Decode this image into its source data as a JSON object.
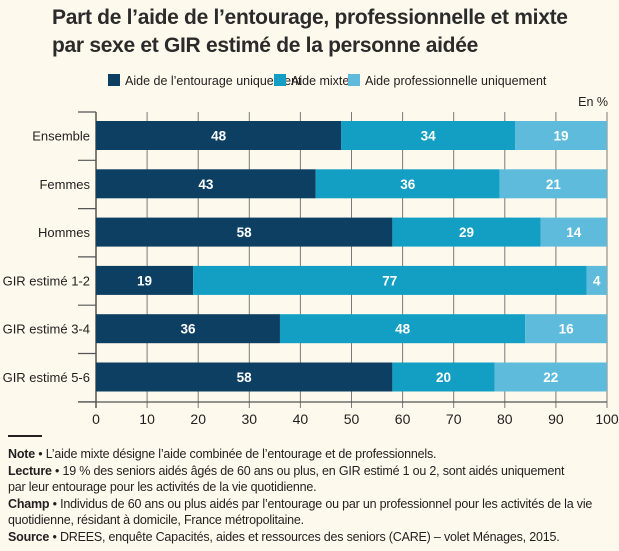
{
  "chart_data": {
    "type": "bar",
    "orientation": "horizontal",
    "stacked": true,
    "title": "Part de l’aide de l’entourage, professionnelle et mixte par sexe et GIR estimé de la personne aidée",
    "title_lines": [
      "Part de l’aide de l’entourage, professionnelle et mixte",
      "par sexe et GIR estimé de la personne aidée"
    ],
    "unit_label": "En %",
    "categories": [
      "Ensemble",
      "Femmes",
      "Hommes",
      "GIR estimé 1-2",
      "GIR estimé 3-4",
      "GIR estimé 5-6"
    ],
    "series": [
      {
        "name": "Aide de l’entourage uniquement",
        "color": "#0d3f63",
        "values": [
          48,
          43,
          58,
          19,
          36,
          58
        ]
      },
      {
        "name": "Aide mixte",
        "color": "#139fc4",
        "values": [
          34,
          36,
          29,
          77,
          48,
          20
        ]
      },
      {
        "name": "Aide professionnelle uniquement",
        "color": "#5ebbdb",
        "values": [
          19,
          21,
          14,
          4,
          16,
          22
        ]
      }
    ],
    "xlim": [
      0,
      100
    ],
    "xticks": [
      0,
      10,
      20,
      30,
      40,
      50,
      60,
      70,
      80,
      90,
      100
    ],
    "xlabel": "",
    "ylabel": "",
    "grid": true,
    "legend": "top"
  },
  "notes": [
    {
      "label": "Note",
      "text": "L’aide mixte désigne l’aide combinée de l’entourage et de professionnels."
    },
    {
      "label": "Lecture",
      "text": "19 % des seniors aidés âgés de 60 ans ou plus, en GIR estimé 1 ou 2, sont aidés uniquement par leur entourage pour les activités de la vie quotidienne."
    },
    {
      "label": "Champ",
      "text": "Individus de 60 ans ou plus aidés par l’entourage ou par un professionnel pour les activités de la vie quotidienne, résidant à domicile, France métropolitaine."
    },
    {
      "label": "Source",
      "text": "DREES, enquête Capacités, aides et ressources des seniors (CARE) – volet Ménages, 2015."
    }
  ],
  "separator": "•"
}
